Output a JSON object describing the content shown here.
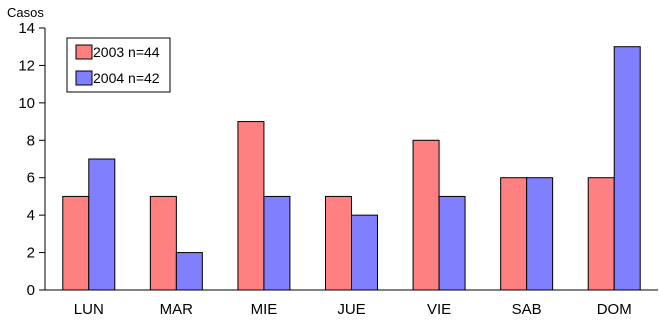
{
  "chart_data": {
    "type": "bar",
    "title": "",
    "ylabel": "Casos",
    "xlabel": "",
    "categories": [
      "LUN",
      "MAR",
      "MIE",
      "JUE",
      "VIE",
      "SAB",
      "DOM"
    ],
    "series": [
      {
        "name": "2003 n=44",
        "color": "#ff8080",
        "values": [
          5,
          5,
          9,
          5,
          8,
          6,
          6
        ]
      },
      {
        "name": "2004 n=42",
        "color": "#8080ff",
        "values": [
          7,
          2,
          5,
          4,
          5,
          6,
          13
        ]
      }
    ],
    "ylim": [
      0,
      14
    ],
    "yticks": [
      0,
      2,
      4,
      6,
      8,
      10,
      12,
      14
    ],
    "grid": false,
    "legend_position": "top-left"
  }
}
